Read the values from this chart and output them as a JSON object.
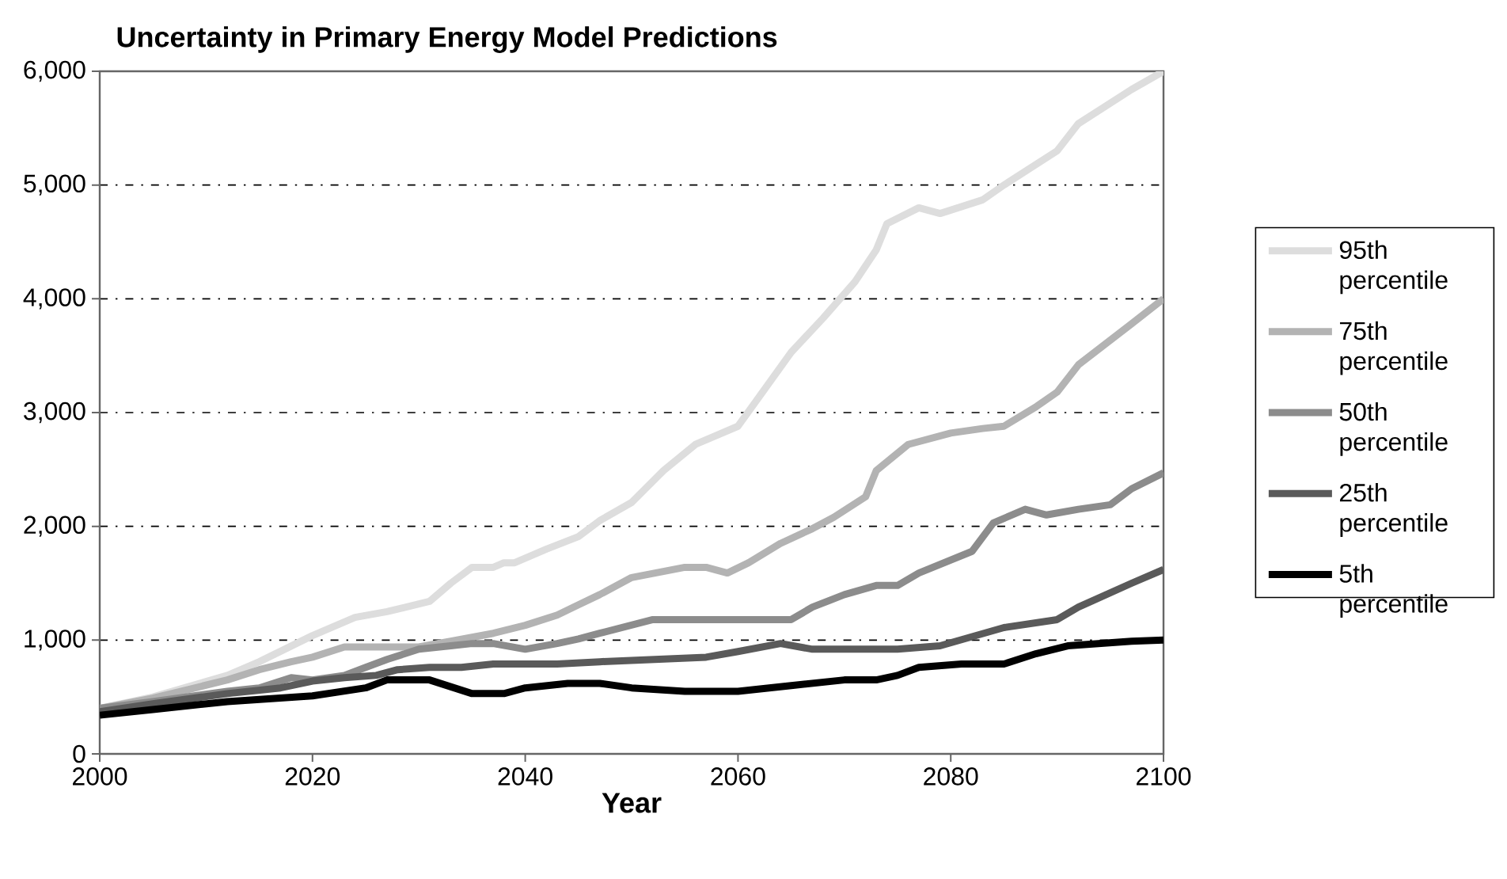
{
  "chart_data": {
    "type": "line",
    "title": "Uncertainty in Primary Energy Model Predictions",
    "xlabel": "Year",
    "xlim": [
      2000,
      2100
    ],
    "xticks": [
      2000,
      2020,
      2040,
      2060,
      2080,
      2100
    ],
    "ylim": [
      0,
      6000
    ],
    "yticks": [
      {
        "value": 0,
        "label": "0"
      },
      {
        "value": 1000,
        "label": "1,000"
      },
      {
        "value": 2000,
        "label": "2,000"
      },
      {
        "value": 3000,
        "label": "3,000"
      },
      {
        "value": 4000,
        "label": "4,000"
      },
      {
        "value": 5000,
        "label": "5,000"
      },
      {
        "value": 6000,
        "label": "6,000"
      }
    ],
    "grid": "y",
    "legend": "right",
    "marker": "none",
    "line_style": "solid",
    "series": [
      {
        "name": "95th percentile",
        "color": "#dddddd",
        "x": [
          2000,
          2005,
          2012,
          2015,
          2020,
          2024,
          2027,
          2031,
          2033,
          2035,
          2037,
          2038,
          2039,
          2042,
          2045,
          2047,
          2050,
          2053,
          2056,
          2060,
          2065,
          2068,
          2071,
          2073,
          2074,
          2077,
          2079,
          2083,
          2085,
          2090,
          2092,
          2097,
          2100
        ],
        "values": [
          400,
          500,
          690,
          810,
          1040,
          1200,
          1250,
          1340,
          1500,
          1640,
          1640,
          1680,
          1680,
          1800,
          1910,
          2050,
          2210,
          2490,
          2720,
          2880,
          3530,
          3830,
          4150,
          4430,
          4660,
          4800,
          4750,
          4870,
          5000,
          5300,
          5540,
          5840,
          6000
        ]
      },
      {
        "name": "75th percentile",
        "color": "#b3b3b3",
        "x": [
          2000,
          2005,
          2012,
          2015,
          2018,
          2020,
          2023,
          2027,
          2030,
          2033,
          2037,
          2040,
          2043,
          2045,
          2047,
          2050,
          2055,
          2057,
          2059,
          2061,
          2064,
          2067,
          2069,
          2072,
          2073,
          2076,
          2080,
          2083,
          2085,
          2088,
          2090,
          2092,
          2097,
          2100
        ],
        "values": [
          400,
          490,
          650,
          740,
          810,
          850,
          940,
          940,
          940,
          990,
          1060,
          1130,
          1220,
          1310,
          1400,
          1550,
          1640,
          1640,
          1590,
          1680,
          1850,
          1980,
          2080,
          2260,
          2490,
          2720,
          2820,
          2860,
          2880,
          3050,
          3180,
          3420,
          3780,
          4000
        ]
      },
      {
        "name": "50th percentile",
        "color": "#8c8c8c",
        "x": [
          2000,
          2005,
          2012,
          2015,
          2018,
          2020,
          2023,
          2025,
          2027,
          2030,
          2033,
          2035,
          2037,
          2040,
          2043,
          2045,
          2047,
          2052,
          2058,
          2065,
          2067,
          2070,
          2073,
          2075,
          2077,
          2082,
          2084,
          2087,
          2089,
          2092,
          2095,
          2097,
          2100
        ],
        "values": [
          400,
          460,
          550,
          580,
          670,
          650,
          690,
          760,
          830,
          920,
          950,
          970,
          970,
          920,
          970,
          1010,
          1060,
          1180,
          1180,
          1180,
          1290,
          1400,
          1480,
          1480,
          1590,
          1780,
          2030,
          2150,
          2100,
          2150,
          2190,
          2330,
          2470
        ]
      },
      {
        "name": "25th percentile",
        "color": "#5a5a5a",
        "x": [
          2000,
          2005,
          2012,
          2017,
          2020,
          2023,
          2026,
          2028,
          2031,
          2034,
          2037,
          2040,
          2043,
          2047,
          2057,
          2060,
          2064,
          2067,
          2075,
          2079,
          2085,
          2090,
          2092,
          2097,
          2100
        ],
        "values": [
          370,
          440,
          530,
          580,
          640,
          670,
          690,
          740,
          760,
          760,
          790,
          790,
          790,
          810,
          850,
          900,
          970,
          920,
          920,
          950,
          1110,
          1180,
          1290,
          1500,
          1620
        ]
      },
      {
        "name": "5th percentile",
        "color": "#000000",
        "x": [
          2000,
          2005,
          2012,
          2020,
          2025,
          2027,
          2031,
          2035,
          2038,
          2040,
          2044,
          2047,
          2050,
          2055,
          2060,
          2065,
          2070,
          2073,
          2075,
          2077,
          2081,
          2085,
          2088,
          2091,
          2097,
          2100
        ],
        "values": [
          340,
          390,
          460,
          510,
          580,
          650,
          650,
          530,
          530,
          580,
          620,
          620,
          580,
          550,
          550,
          600,
          650,
          650,
          690,
          760,
          790,
          790,
          880,
          950,
          990,
          1000
        ]
      }
    ]
  }
}
